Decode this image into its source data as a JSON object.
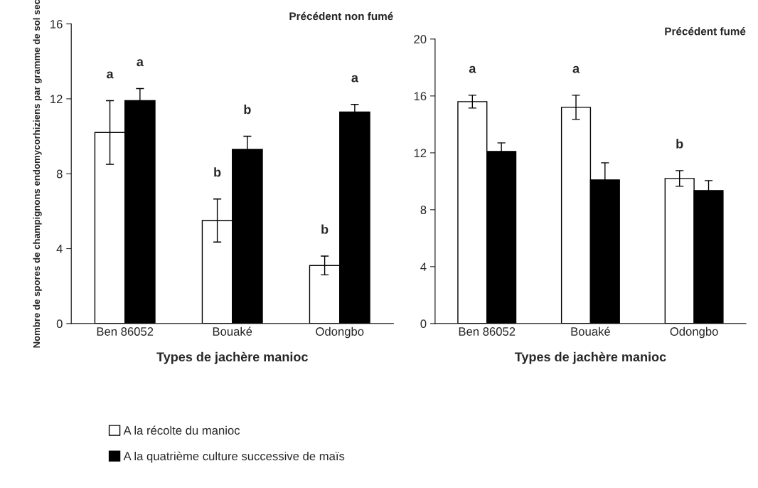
{
  "chart_data": [
    {
      "type": "bar",
      "title": "Précédent non fumé",
      "xlabel": "Types de jachère manioc",
      "ylabel": "Nombre de spores de champignons endomycorhiziens par gramme de sol sec",
      "categories": [
        "Ben 86052",
        "Bouaké",
        "Odongbo"
      ],
      "ylim": [
        0,
        16
      ],
      "yticks": [
        0,
        4,
        8,
        12,
        16
      ],
      "legend": "bottom",
      "series": [
        {
          "name": "A la récolte du manioc",
          "color": "#ffffff",
          "values": [
            10.2,
            5.5,
            3.1
          ],
          "errors": [
            1.7,
            1.15,
            0.5
          ]
        },
        {
          "name": "A la quatrième culture successive de maïs",
          "color": "#000000",
          "values": [
            11.9,
            9.3,
            11.3
          ],
          "errors": [
            0.65,
            0.7,
            0.4
          ]
        }
      ],
      "annotations": [
        "a",
        "a",
        "b",
        "b",
        "b",
        "a"
      ]
    },
    {
      "type": "bar",
      "title": "Précédent fumé",
      "xlabel": "Types de jachère manioc",
      "categories": [
        "Ben 86052",
        "Bouaké",
        "Odongbo"
      ],
      "ylim": [
        0,
        20
      ],
      "yticks": [
        0,
        4,
        8,
        12,
        16,
        20
      ],
      "series": [
        {
          "color": "#ffffff",
          "values": [
            15.6,
            15.2,
            10.2
          ],
          "errors": [
            0.45,
            0.85,
            0.55
          ]
        },
        {
          "color": "#000000",
          "values": [
            12.1,
            10.1,
            9.35
          ],
          "errors": [
            0.6,
            1.2,
            0.7
          ]
        }
      ],
      "annotations": [
        "a",
        "a",
        "b"
      ]
    }
  ]
}
